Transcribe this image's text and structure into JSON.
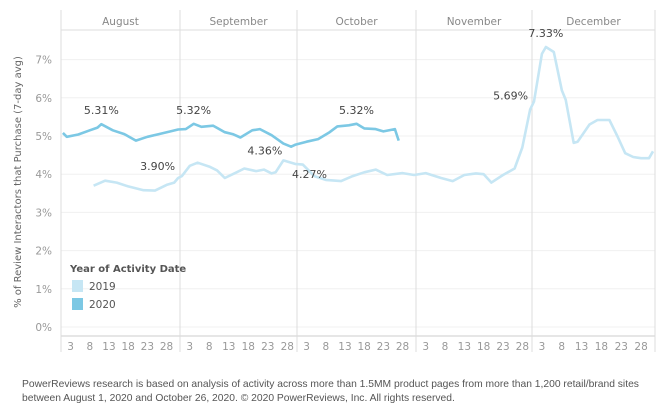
{
  "chart_data": {
    "type": "line",
    "ylabel": "% of Review Interactors that Purchase (7-day avg)",
    "ylim": [
      0,
      7.8
    ],
    "yticks": [
      "0%",
      "1%",
      "2%",
      "3%",
      "4%",
      "5%",
      "6%",
      "7%"
    ],
    "grid": true,
    "months": [
      "August",
      "September",
      "October",
      "November",
      "December"
    ],
    "xtick_days": [
      "3",
      "8",
      "13",
      "18",
      "23",
      "28"
    ],
    "legend": {
      "title": "Year of Activity Date",
      "placement": "bottom-left"
    },
    "series": [
      {
        "name": "2019",
        "color": "#c6e6f4",
        "points": [
          [
            "Aug 9",
            3.7
          ],
          [
            "Aug 12",
            3.83
          ],
          [
            "Aug 15",
            3.78
          ],
          [
            "Aug 18",
            3.68
          ],
          [
            "Aug 22",
            3.58
          ],
          [
            "Aug 25",
            3.57
          ],
          [
            "Aug 28",
            3.72
          ],
          [
            "Aug 30",
            3.78
          ],
          [
            "Aug 31",
            3.9
          ],
          [
            "Sep 1",
            3.95
          ],
          [
            "Sep 3",
            4.22
          ],
          [
            "Sep 5",
            4.3
          ],
          [
            "Sep 8",
            4.2
          ],
          [
            "Sep 10",
            4.1
          ],
          [
            "Sep 12",
            3.9
          ],
          [
            "Sep 15",
            4.05
          ],
          [
            "Sep 17",
            4.15
          ],
          [
            "Sep 20",
            4.08
          ],
          [
            "Sep 22",
            4.12
          ],
          [
            "Sep 24",
            4.02
          ],
          [
            "Sep 25",
            4.05
          ],
          [
            "Sep 27",
            4.36
          ],
          [
            "Sep 30",
            4.27
          ],
          [
            "Oct 2",
            4.25
          ],
          [
            "Oct 5",
            3.95
          ],
          [
            "Oct 8",
            3.85
          ],
          [
            "Oct 12",
            3.82
          ],
          [
            "Oct 15",
            3.95
          ],
          [
            "Oct 18",
            4.05
          ],
          [
            "Oct 21",
            4.12
          ],
          [
            "Oct 24",
            3.98
          ],
          [
            "Oct 28",
            4.03
          ],
          [
            "Oct 31",
            3.98
          ],
          [
            "Nov 3",
            4.03
          ],
          [
            "Nov 7",
            3.9
          ],
          [
            "Nov 10",
            3.82
          ],
          [
            "Nov 13",
            3.98
          ],
          [
            "Nov 16",
            4.02
          ],
          [
            "Nov 18",
            4.0
          ],
          [
            "Nov 20",
            3.78
          ],
          [
            "Nov 23",
            3.98
          ],
          [
            "Nov 26",
            4.15
          ],
          [
            "Nov 28",
            4.7
          ],
          [
            "Nov 30",
            5.69
          ],
          [
            "Dec 1",
            5.9
          ],
          [
            "Dec 3",
            7.15
          ],
          [
            "Dec 4",
            7.33
          ],
          [
            "Dec 6",
            7.2
          ],
          [
            "Dec 8",
            6.2
          ],
          [
            "Dec 9",
            5.95
          ],
          [
            "Dec 11",
            4.82
          ],
          [
            "Dec 12",
            4.85
          ],
          [
            "Dec 15",
            5.3
          ],
          [
            "Dec 17",
            5.42
          ],
          [
            "Dec 20",
            5.42
          ],
          [
            "Dec 22",
            5.0
          ],
          [
            "Dec 24",
            4.55
          ],
          [
            "Dec 26",
            4.45
          ],
          [
            "Dec 28",
            4.42
          ],
          [
            "Dec 30",
            4.42
          ],
          [
            "Dec 31",
            4.6
          ]
        ]
      },
      {
        "name": "2020",
        "color": "#7cc8e4",
        "points": [
          [
            "Aug 1",
            5.08
          ],
          [
            "Aug 2",
            4.98
          ],
          [
            "Aug 5",
            5.04
          ],
          [
            "Aug 8",
            5.15
          ],
          [
            "Aug 10",
            5.22
          ],
          [
            "Aug 11",
            5.31
          ],
          [
            "Aug 14",
            5.15
          ],
          [
            "Aug 17",
            5.05
          ],
          [
            "Aug 20",
            4.88
          ],
          [
            "Aug 23",
            4.98
          ],
          [
            "Aug 26",
            5.05
          ],
          [
            "Aug 29",
            5.12
          ],
          [
            "Aug 31",
            5.17
          ],
          [
            "Sep 2",
            5.18
          ],
          [
            "Sep 4",
            5.32
          ],
          [
            "Sep 6",
            5.24
          ],
          [
            "Sep 9",
            5.27
          ],
          [
            "Sep 12",
            5.1
          ],
          [
            "Sep 14",
            5.05
          ],
          [
            "Sep 16",
            4.96
          ],
          [
            "Sep 19",
            5.15
          ],
          [
            "Sep 21",
            5.18
          ],
          [
            "Sep 24",
            5.02
          ],
          [
            "Sep 27",
            4.8
          ],
          [
            "Sep 29",
            4.72
          ],
          [
            "Sep 30",
            4.77
          ],
          [
            "Oct 3",
            4.85
          ],
          [
            "Oct 6",
            4.92
          ],
          [
            "Oct 9",
            5.1
          ],
          [
            "Oct 11",
            5.25
          ],
          [
            "Oct 14",
            5.28
          ],
          [
            "Oct 16",
            5.32
          ],
          [
            "Oct 18",
            5.2
          ],
          [
            "Oct 21",
            5.18
          ],
          [
            "Oct 23",
            5.12
          ],
          [
            "Oct 26",
            5.18
          ],
          [
            "Oct 27",
            4.88
          ]
        ]
      }
    ],
    "annotations": [
      {
        "series": "2020",
        "x": "Aug 11",
        "label": "5.31%"
      },
      {
        "series": "2020",
        "x": "Sep 4",
        "label": "5.32%"
      },
      {
        "series": "2020",
        "x": "Oct 16",
        "label": "5.32%"
      },
      {
        "series": "2019",
        "x": "Aug 31",
        "label": "3.90%"
      },
      {
        "series": "2019",
        "x": "Sep 27",
        "label": "4.36%"
      },
      {
        "series": "2019",
        "x": "Sep 30",
        "label": "4.27%"
      },
      {
        "series": "2019",
        "x": "Nov 30",
        "label": "5.69%"
      },
      {
        "series": "2019",
        "x": "Dec 4",
        "label": "7.33%"
      }
    ]
  },
  "footnote": "PowerReviews research is based on analysis of activity across more than 1.5MM product pages from more than 1,200 retail/brand sites between August 1,  2020 and October 26, 2020. © 2020 PowerReviews, Inc. All rights reserved."
}
